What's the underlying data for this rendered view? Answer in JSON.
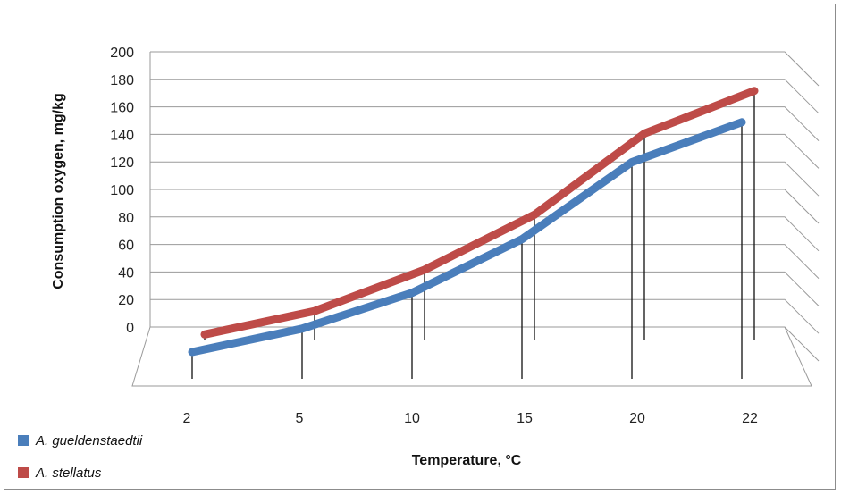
{
  "chart_data": {
    "type": "line",
    "style": "3d",
    "title": "",
    "xlabel": "Temperature, °C",
    "ylabel": "Consumption oxygen, mg/kg",
    "categories": [
      "2",
      "5",
      "10",
      "15",
      "20",
      "22"
    ],
    "ylim": [
      0,
      200
    ],
    "yticks": [
      "0",
      "20",
      "40",
      "60",
      "80",
      "100",
      "120",
      "140",
      "160",
      "180",
      "200"
    ],
    "grid": true,
    "legend_position": "bottom-left",
    "series": [
      {
        "name": "A. gueldenstaedtii",
        "color": "#4a7ebb",
        "values": [
          0,
          17,
          43,
          82,
          138,
          167
        ]
      },
      {
        "name": "A. stellatus",
        "color": "#be4b48",
        "values": [
          5,
          22,
          52,
          92,
          151,
          182
        ]
      }
    ]
  }
}
